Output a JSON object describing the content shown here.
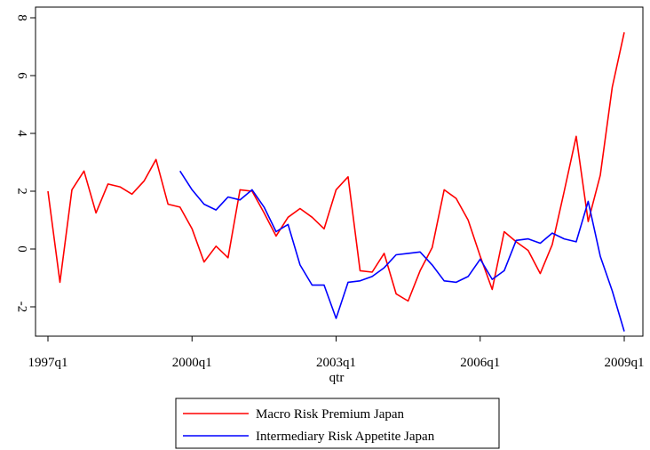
{
  "chart_data": {
    "type": "line",
    "title": "",
    "xlabel": "qtr",
    "ylabel": "",
    "x_ticks": [
      "1997q1",
      "2000q1",
      "2003q1",
      "2006q1",
      "2009q1"
    ],
    "y_ticks": [
      "-2",
      "0",
      "2",
      "4",
      "6",
      "8"
    ],
    "y_tick_values": [
      -2,
      0,
      2,
      4,
      6,
      8
    ],
    "xlim": [
      "1997q1",
      "2009q1"
    ],
    "ylim": [
      -3.2,
      8.5
    ],
    "grid": false,
    "legend_position": "bottom",
    "series": [
      {
        "name": "Macro Risk Premium Japan",
        "color": "#ff0000",
        "x": [
          "1997q1",
          "1997q2",
          "1997q3",
          "1997q4",
          "1998q1",
          "1998q2",
          "1998q3",
          "1998q4",
          "1999q1",
          "1999q2",
          "1999q3",
          "1999q4",
          "2000q1",
          "2000q2",
          "2000q3",
          "2000q4",
          "2001q1",
          "2001q2",
          "2001q3",
          "2001q4",
          "2002q1",
          "2002q2",
          "2002q3",
          "2002q4",
          "2003q1",
          "2003q2",
          "2003q3",
          "2003q4",
          "2004q1",
          "2004q2",
          "2004q3",
          "2004q4",
          "2005q1",
          "2005q2",
          "2005q3",
          "2005q4",
          "2006q1",
          "2006q2",
          "2006q3",
          "2006q4",
          "2007q1",
          "2007q2",
          "2007q3",
          "2007q4",
          "2008q1",
          "2008q2",
          "2008q3",
          "2008q4",
          "2009q1"
        ],
        "values": [
          2.0,
          -1.15,
          2.05,
          2.7,
          1.25,
          2.25,
          2.15,
          1.9,
          2.35,
          3.1,
          1.55,
          1.45,
          0.7,
          -0.45,
          0.1,
          -0.3,
          2.05,
          2.0,
          1.25,
          0.45,
          1.1,
          1.4,
          1.1,
          0.7,
          2.05,
          2.5,
          -0.75,
          -0.8,
          -0.15,
          -1.55,
          -1.8,
          -0.75,
          0.05,
          2.05,
          1.75,
          1.0,
          -0.25,
          -1.4,
          0.6,
          0.25,
          -0.05,
          -0.85,
          0.15,
          2.0,
          3.9,
          0.95,
          2.55,
          5.6,
          7.5
        ]
      },
      {
        "name": "Intermediary Risk Appetite Japan",
        "color": "#0000ff",
        "x": [
          "1999q4",
          "2000q1",
          "2000q2",
          "2000q3",
          "2000q4",
          "2001q1",
          "2001q2",
          "2001q3",
          "2001q4",
          "2002q1",
          "2002q2",
          "2002q3",
          "2002q4",
          "2003q1",
          "2003q2",
          "2003q3",
          "2003q4",
          "2004q1",
          "2004q2",
          "2004q3",
          "2004q4",
          "2005q1",
          "2005q2",
          "2005q3",
          "2005q4",
          "2006q1",
          "2006q2",
          "2006q3",
          "2006q4",
          "2007q1",
          "2007q2",
          "2007q3",
          "2007q4",
          "2008q1",
          "2008q2",
          "2008q3",
          "2008q4",
          "2009q1"
        ],
        "values": [
          2.7,
          2.05,
          1.55,
          1.35,
          1.8,
          1.7,
          2.05,
          1.45,
          0.6,
          0.85,
          -0.55,
          -1.25,
          -1.25,
          -2.4,
          -1.15,
          -1.1,
          -0.95,
          -0.65,
          -0.2,
          -0.15,
          -0.1,
          -0.55,
          -1.1,
          -1.15,
          -0.95,
          -0.35,
          -1.05,
          -0.75,
          0.3,
          0.35,
          0.2,
          0.55,
          0.35,
          0.25,
          1.65,
          -0.25,
          -1.45,
          -2.85
        ]
      }
    ]
  }
}
